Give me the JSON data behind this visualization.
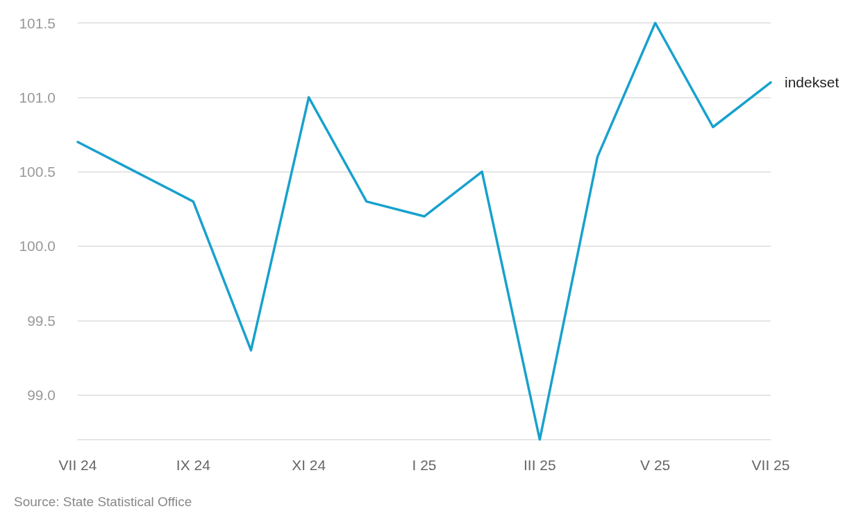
{
  "chart_data": {
    "type": "line",
    "categories": [
      "VII 24",
      null,
      "IX 24",
      null,
      "XI 24",
      null,
      "I 25",
      null,
      "III 25",
      null,
      "V 25",
      null,
      "VII 25"
    ],
    "series": [
      {
        "name": "indekset",
        "color": "#18a1cd",
        "values": [
          100.7,
          100.5,
          100.3,
          99.3,
          101.0,
          100.3,
          100.2,
          100.5,
          98.7,
          100.6,
          101.5,
          100.8,
          101.1
        ]
      }
    ],
    "ylim": [
      98.7,
      101.5
    ],
    "yticks": [
      {
        "value": 99,
        "label": "99.0"
      },
      99.5,
      {
        "value": 100,
        "label": "100.0"
      },
      100.5,
      {
        "value": 101,
        "label": "101.0"
      },
      101.5
    ],
    "grid": "y",
    "legend": false,
    "marker": "none",
    "line_style": "solid",
    "annotations": [
      "Source: State Statistical Office"
    ]
  }
}
